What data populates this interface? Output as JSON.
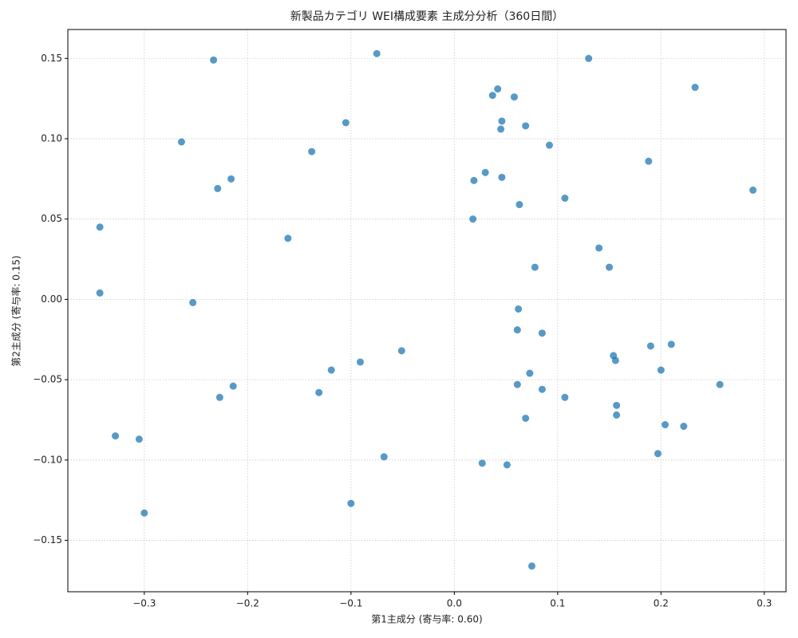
{
  "chart_data": {
    "type": "scatter",
    "title": "新製品カテゴリ WEI構成要素 主成分分析（360日間）",
    "x_label": "第1主成分 (寄与率: 0.60)",
    "y_label": "第2主成分 (寄与率: 0.15)",
    "color": "#1f77b4",
    "grid": true,
    "xlim": [
      -0.374,
      0.321
    ],
    "ylim": [
      -0.182,
      0.168
    ],
    "xticks": [
      {
        "value": -0.3,
        "label": "−0.3"
      },
      {
        "value": -0.2,
        "label": "−0.2"
      },
      {
        "value": -0.1,
        "label": "−0.1"
      },
      {
        "value": 0,
        "label": "0.0"
      },
      0.1,
      0.2,
      0.3
    ],
    "yticks": [
      {
        "value": -0.15,
        "label": "−0.15"
      },
      {
        "value": -0.1,
        "label": "−0.10"
      },
      {
        "value": -0.05,
        "label": "−0.05"
      },
      {
        "value": 0,
        "label": "0.00"
      },
      0.05,
      {
        "value": 0.1,
        "label": "0.10"
      },
      0.15
    ],
    "x": [
      -0.233,
      -0.075,
      0.13,
      0.233,
      0.042,
      0.037,
      0.058,
      -0.105,
      0.046,
      0.045,
      0.069,
      -0.264,
      -0.138,
      0.092,
      0.188,
      -0.216,
      -0.229,
      0.03,
      0.019,
      0.046,
      0.289,
      0.107,
      0.063,
      0.018,
      -0.343,
      -0.161,
      0.14,
      0.15,
      0.078,
      -0.343,
      -0.253,
      0.062,
      0.061,
      0.085,
      -0.051,
      0.154,
      0.156,
      0.19,
      0.21,
      -0.091,
      -0.119,
      0.2,
      0.073,
      0.257,
      0.061,
      0.085,
      -0.214,
      -0.131,
      -0.227,
      0.107,
      0.157,
      0.157,
      0.069,
      0.204,
      0.222,
      -0.328,
      -0.305,
      -0.068,
      0.197,
      0.027,
      0.051,
      -0.3,
      -0.1,
      0.075
    ],
    "values": [
      0.149,
      0.153,
      0.15,
      0.132,
      0.131,
      0.127,
      0.126,
      0.11,
      0.111,
      0.106,
      0.108,
      0.098,
      0.092,
      0.096,
      0.086,
      0.075,
      0.069,
      0.079,
      0.074,
      0.076,
      0.068,
      0.063,
      0.059,
      0.05,
      0.045,
      0.038,
      0.032,
      0.02,
      0.02,
      0.004,
      -0.002,
      -0.006,
      -0.019,
      -0.021,
      -0.032,
      -0.035,
      -0.038,
      -0.029,
      -0.028,
      -0.039,
      -0.044,
      -0.044,
      -0.046,
      -0.053,
      -0.053,
      -0.056,
      -0.054,
      -0.058,
      -0.061,
      -0.061,
      -0.066,
      -0.072,
      -0.074,
      -0.078,
      -0.079,
      -0.085,
      -0.087,
      -0.098,
      -0.096,
      -0.102,
      -0.103,
      -0.133,
      -0.127,
      -0.166
    ]
  }
}
